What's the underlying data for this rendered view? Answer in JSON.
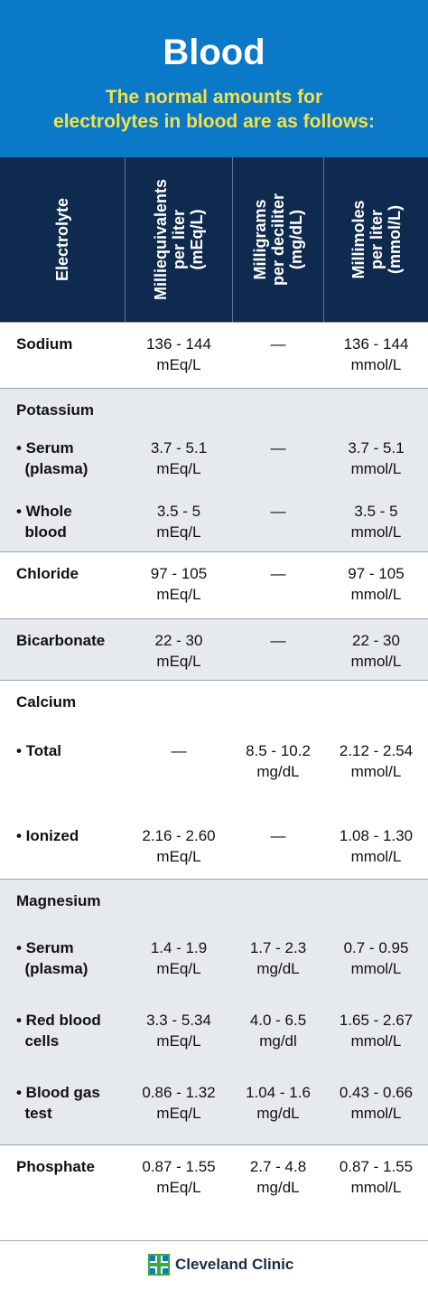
{
  "header": {
    "title": "Blood",
    "subtitle": "The normal amounts for\nelectrolytes in blood are as follows:"
  },
  "columns": [
    "Electrolyte",
    "Milliequivalents\nper liter\n(mEq/L)",
    "Milligrams\nper deciliter\n(mg/dL)",
    "Millimoles\nper liter\n(mmol/L)"
  ],
  "rows": {
    "sodium": {
      "name": "Sodium",
      "meq": "136 - 144\nmEq/L",
      "mg": "—",
      "mmol": "136 - 144\nmmol/L"
    },
    "potassium": {
      "name": "Potassium"
    },
    "potassium_serum": {
      "name": "• Serum\n  (plasma)",
      "meq": "3.7 - 5.1\nmEq/L",
      "mg": "—",
      "mmol": "3.7 - 5.1\nmmol/L"
    },
    "potassium_whole": {
      "name": "• Whole\n  blood",
      "meq": "3.5 - 5\nmEq/L",
      "mg": "—",
      "mmol": "3.5 - 5\nmmol/L"
    },
    "chloride": {
      "name": "Chloride",
      "meq": "97 - 105\nmEq/L",
      "mg": "—",
      "mmol": "97 - 105\nmmol/L"
    },
    "bicarbonate": {
      "name": "Bicarbonate",
      "meq": "22 - 30\nmEq/L",
      "mg": "—",
      "mmol": "22 - 30\nmmol/L"
    },
    "calcium": {
      "name": "Calcium"
    },
    "calcium_total": {
      "name": "• Total",
      "meq": "—",
      "mg": "8.5 - 10.2\nmg/dL",
      "mmol": "2.12 - 2.54\nmmol/L"
    },
    "calcium_ionized": {
      "name": "• Ionized",
      "meq": "2.16 - 2.60\nmEq/L",
      "mg": "—",
      "mmol": "1.08 - 1.30\nmmol/L"
    },
    "magnesium": {
      "name": "Magnesium"
    },
    "magnesium_serum": {
      "name": "• Serum\n  (plasma)",
      "meq": "1.4 - 1.9\nmEq/L",
      "mg": "1.7 - 2.3\nmg/dL",
      "mmol": "0.7 - 0.95\nmmol/L"
    },
    "magnesium_rbc": {
      "name": "• Red blood\n  cells",
      "meq": "3.3 - 5.34\nmEq/L",
      "mg": "4.0 - 6.5\nmg/dl",
      "mmol": "1.65 - 2.67\nmmol/L"
    },
    "magnesium_bloodgas": {
      "name": "• Blood gas\n  test",
      "meq": "0.86 - 1.32\nmEq/L",
      "mg": "1.04 - 1.6\nmg/dL",
      "mmol": "0.43 - 0.66\nmmol/L"
    },
    "phosphate": {
      "name": "Phosphate",
      "meq": "0.87 - 1.55\nmEq/L",
      "mg": "2.7 - 4.8\nmg/dL",
      "mmol": "0.87 - 1.55\nmmol/L"
    }
  },
  "footer": {
    "brand": "Cleveland Clinic",
    "logo_icon": "cleveland-clinic-logo-icon",
    "colors": {
      "header_bg": "#0a79c7",
      "subtitle": "#f5e04a",
      "column_header_bg": "#0f2a4f",
      "shaded_row": "#e6e9ed",
      "logo_green": "#3aa843",
      "logo_blue": "#0a79c7"
    }
  }
}
